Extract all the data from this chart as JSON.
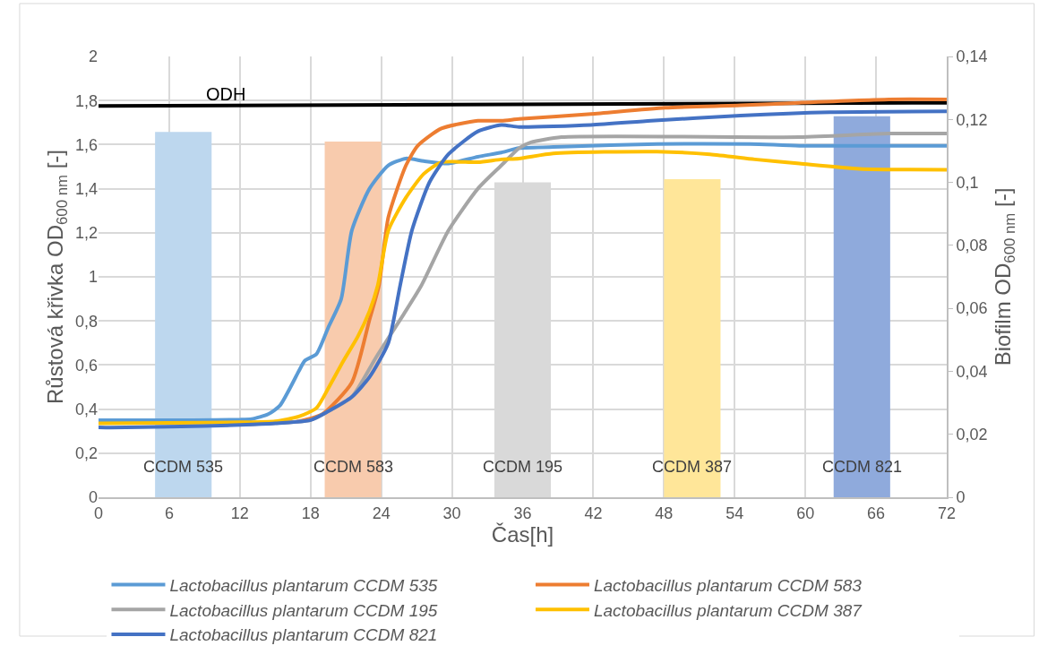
{
  "chart_data": {
    "type": "line",
    "xlabel": "Čas[h]",
    "ylabel": "Růstová křivka OD$_{600 nm}$ [-]",
    "y2label": "Biofilm OD$_{600 nm}$ [-]",
    "xlim": [
      0,
      72
    ],
    "xticks": [
      0,
      6,
      12,
      18,
      24,
      30,
      36,
      42,
      48,
      54,
      60,
      66,
      72
    ],
    "ylim": [
      0,
      2
    ],
    "yticks": [
      0,
      {
        "value": 0.2,
        "label": "0,2"
      },
      {
        "value": 0.4,
        "label": "0,4"
      },
      {
        "value": 0.6,
        "label": "0,6"
      },
      {
        "value": 0.8,
        "label": "0,8"
      },
      1,
      {
        "value": 1.2,
        "label": "1,2"
      },
      {
        "value": 1.4,
        "label": "1,4"
      },
      {
        "value": 1.6,
        "label": "1,6"
      },
      {
        "value": 1.8,
        "label": "1,8"
      },
      2
    ],
    "y2lim": [
      0,
      0.14
    ],
    "y2ticks": [
      0,
      {
        "value": 0.02,
        "label": "0,02"
      },
      {
        "value": 0.04,
        "label": "0,04"
      },
      {
        "value": 0.06,
        "label": "0,06"
      },
      {
        "value": 0.08,
        "label": "0,08"
      },
      {
        "value": 0.1,
        "label": "0,1"
      },
      {
        "value": 0.12,
        "label": "0,12"
      },
      {
        "value": 0.14,
        "label": "0,14"
      }
    ],
    "grid": true,
    "legend": "bottom",
    "marker": "none",
    "line_style": "solid",
    "annotations": [
      "CCDM 535",
      "CCDM 583",
      "CCDM 195",
      "CCDM 387",
      "CCDM 821"
    ],
    "series": [
      {
        "type": "bar",
        "axis": "y2",
        "x": [
          7.2,
          21.6,
          36,
          50.4,
          64.8
        ],
        "colors": [
          "#bdd7ee",
          "#f8cbad",
          "#d9d9d9",
          "#ffe699",
          "#8faadc"
        ],
        "values": [
          0.116,
          0.113,
          0.1,
          0.101,
          0.121
        ]
      },
      {
        "name": "ODH",
        "color": "#000000",
        "x": [
          0,
          72
        ],
        "values": [
          1.775,
          1.79
        ]
      },
      {
        "name": "Lactobacillus plantarum CCDM 535",
        "color": "#5b9bd5",
        "x": [
          0,
          4,
          8,
          12,
          13,
          14.4,
          15.4,
          17,
          17.5,
          18.5,
          19.5,
          20.6,
          21.5,
          23,
          24.6,
          26.1,
          27.6,
          29.7,
          32.2,
          34.2,
          35.7,
          39.3,
          47.4,
          55.3,
          59.5,
          72
        ],
        "values": [
          0.35,
          0.35,
          0.35,
          0.352,
          0.355,
          0.377,
          0.416,
          0.572,
          0.619,
          0.65,
          0.77,
          0.9,
          1.21,
          1.4,
          1.506,
          1.537,
          1.525,
          1.514,
          1.545,
          1.564,
          1.584,
          1.59,
          1.603,
          1.603,
          1.595,
          1.595
        ]
      },
      {
        "name": "Lactobacillus plantarum CCDM 583",
        "color": "#ed7d31",
        "x": [
          12,
          17,
          19,
          21.5,
          23,
          23.8,
          24.6,
          26.1,
          27.1,
          29.1,
          32.2,
          34.2,
          35.7,
          41.8,
          48.1,
          54.5,
          59.5,
          67.1,
          72
        ],
        "values": [
          0.33,
          0.345,
          0.377,
          0.52,
          0.805,
          0.96,
          1.27,
          1.506,
          1.595,
          1.673,
          1.708,
          1.708,
          1.716,
          1.739,
          1.767,
          1.778,
          1.79,
          1.805,
          1.805
        ]
      },
      {
        "name": "Lactobacillus plantarum CCDM 195",
        "color": "#a5a5a5",
        "x": [
          12,
          18,
          19.5,
          21.5,
          23.6,
          25.9,
          27.4,
          29.7,
          32.2,
          34.2,
          35.7,
          36.7,
          39.3,
          59.5,
          67.1,
          72
        ],
        "values": [
          0.33,
          0.35,
          0.39,
          0.455,
          0.638,
          0.83,
          0.96,
          1.21,
          1.4,
          1.506,
          1.584,
          1.61,
          1.634,
          1.634,
          1.65,
          1.65
        ]
      },
      {
        "name": "Lactobacillus plantarum CCDM 387",
        "color": "#ffc000",
        "x": [
          0,
          6,
          12,
          15,
          17,
          18.5,
          19.5,
          20.8,
          22,
          23,
          23.7,
          24.6,
          26.1,
          27.6,
          29.1,
          32.2,
          34.2,
          35.7,
          38.6,
          47.4,
          51.9,
          55.7,
          59.5,
          64.6,
          72
        ],
        "values": [
          0.335,
          0.337,
          0.34,
          0.345,
          0.366,
          0.405,
          0.494,
          0.62,
          0.728,
          0.844,
          0.96,
          1.21,
          1.36,
          1.467,
          1.52,
          1.52,
          1.533,
          1.537,
          1.56,
          1.568,
          1.556,
          1.533,
          1.514,
          1.49,
          1.486
        ]
      },
      {
        "name": "Lactobacillus plantarum CCDM 821",
        "color": "#4472c4",
        "x": [
          0,
          1,
          6,
          12,
          15,
          18,
          19.5,
          21.5,
          23,
          24.6,
          25.6,
          26.6,
          28.1,
          29.7,
          32.2,
          34.2,
          35.7,
          41.8,
          46.9,
          54.5,
          62.1,
          72
        ],
        "values": [
          0.317,
          0.316,
          0.32,
          0.328,
          0.335,
          0.35,
          0.39,
          0.455,
          0.545,
          0.7,
          0.96,
          1.21,
          1.43,
          1.556,
          1.66,
          1.689,
          1.68,
          1.689,
          1.708,
          1.732,
          1.747,
          1.751
        ]
      }
    ]
  }
}
